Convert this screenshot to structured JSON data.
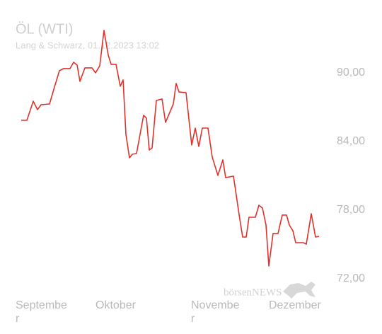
{
  "chart_data": {
    "type": "line",
    "title": "ÖL (WTI)",
    "subtitle": "Lang & Schwarz, 01.12.2023 13:02",
    "watermark": "börsenNEWS",
    "x": [
      8,
      16,
      25,
      31,
      36,
      48,
      55,
      62,
      68,
      77,
      82,
      87,
      91,
      98,
      108,
      113,
      119,
      125,
      131,
      135,
      142,
      148,
      152,
      156,
      161,
      165,
      171,
      181,
      185,
      189,
      193,
      199,
      207,
      212,
      223,
      227,
      231,
      241,
      249,
      254,
      259,
      264,
      272,
      278,
      286,
      293,
      297,
      308,
      317,
      321,
      326,
      330,
      339,
      344,
      349,
      354,
      358,
      364,
      371,
      377,
      383,
      387,
      392,
      396,
      407,
      411,
      418,
      424,
      429
    ],
    "xlim": [
      0,
      436
    ],
    "xticks": [
      {
        "value": 0,
        "label": "Septembe\nr"
      },
      {
        "value": 113,
        "label": "Oktober"
      },
      {
        "value": 248,
        "label": "Novembe\nr"
      },
      {
        "value": 358,
        "label": "Dezember"
      }
    ],
    "series": [
      {
        "name": "ÖL (WTI)",
        "color": "#e0322b",
        "values": [
          85.84,
          85.84,
          87.51,
          86.77,
          87.2,
          87.26,
          88.75,
          90.17,
          90.36,
          90.36,
          90.91,
          90.67,
          89.24,
          90.42,
          90.42,
          89.99,
          90.6,
          93.7,
          91.53,
          90.73,
          90.73,
          88.81,
          89.37,
          84.61,
          82.56,
          82.87,
          82.94,
          86.28,
          86.03,
          83.24,
          83.43,
          87.57,
          87.7,
          85.66,
          87.26,
          89.06,
          88.32,
          88.25,
          83.68,
          85.16,
          83.55,
          85.16,
          85.16,
          82.63,
          81.02,
          82.38,
          80.83,
          80.96,
          77.18,
          75.64,
          75.64,
          77.37,
          77.37,
          78.42,
          78.17,
          76.69,
          73.1,
          75.95,
          75.95,
          77.56,
          77.56,
          76.69,
          76.19,
          75.14,
          75.14,
          75.02,
          77.68,
          75.64,
          75.7
        ]
      }
    ],
    "ylim": [
      71,
      94
    ],
    "yticks": [
      {
        "value": 72,
        "label": "72,00"
      },
      {
        "value": 78,
        "label": "78,00"
      },
      {
        "value": 84,
        "label": "84,00"
      },
      {
        "value": 90,
        "label": "90,00"
      }
    ],
    "grid": false
  }
}
